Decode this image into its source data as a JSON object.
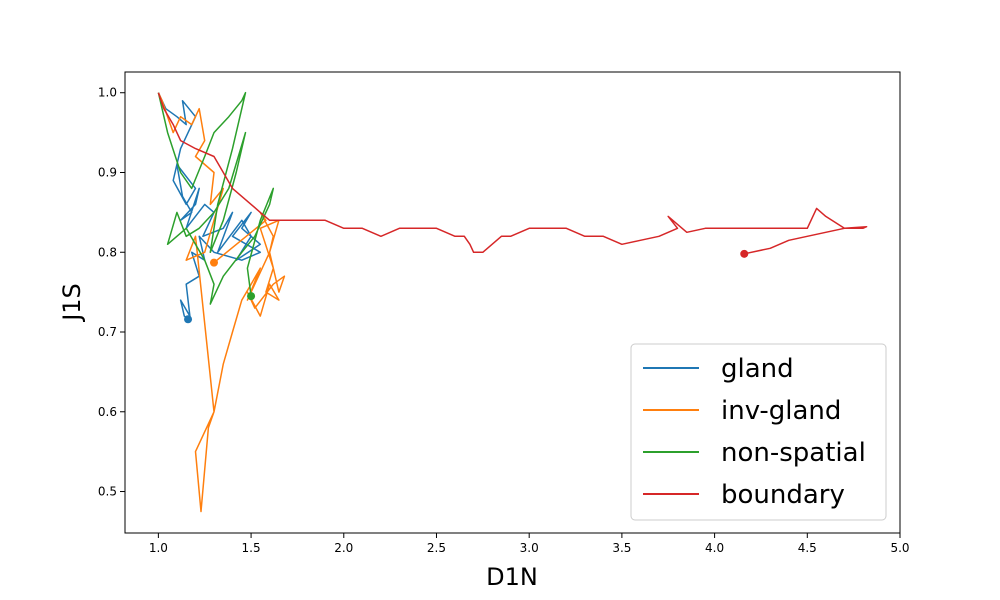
{
  "chart_data": {
    "type": "line",
    "title": "",
    "xlabel": "D1N",
    "ylabel": "J1S",
    "xlim": [
      0.82,
      5.0
    ],
    "ylim": [
      0.448,
      1.026
    ],
    "xticks": [
      1.0,
      1.5,
      2.0,
      2.5,
      3.0,
      3.5,
      4.0,
      4.5,
      5.0
    ],
    "yticks": [
      0.5,
      0.6,
      0.7,
      0.8,
      0.9,
      1.0
    ],
    "grid": false,
    "legend_position": "lower-right",
    "series": [
      {
        "name": "gland",
        "color": "#1f77b4",
        "x": [
          1.0,
          1.04,
          1.1,
          1.15,
          1.13,
          1.2,
          1.12,
          1.08,
          1.15,
          1.2,
          1.1,
          1.13,
          1.18,
          1.12,
          1.2,
          1.22,
          1.15,
          1.25,
          1.3,
          1.24,
          1.35,
          1.4,
          1.32,
          1.45,
          1.5,
          1.42,
          1.55,
          1.45,
          1.5,
          1.4,
          1.55,
          1.45,
          1.3,
          1.22,
          1.25,
          1.18,
          1.22,
          1.15,
          1.17,
          1.12,
          1.14,
          1.16
        ],
        "y": [
          1.0,
          0.98,
          0.97,
          0.96,
          0.99,
          0.97,
          0.93,
          0.89,
          0.86,
          0.88,
          0.91,
          0.87,
          0.85,
          0.84,
          0.86,
          0.88,
          0.83,
          0.86,
          0.85,
          0.82,
          0.83,
          0.85,
          0.8,
          0.84,
          0.82,
          0.79,
          0.81,
          0.83,
          0.85,
          0.82,
          0.8,
          0.79,
          0.8,
          0.82,
          0.79,
          0.8,
          0.77,
          0.76,
          0.72,
          0.74,
          0.72,
          0.716
        ]
      },
      {
        "name": "inv-gland",
        "color": "#ff7f0e",
        "x": [
          1.0,
          1.02,
          1.05,
          1.08,
          1.12,
          1.18,
          1.22,
          1.25,
          1.2,
          1.3,
          1.28,
          1.35,
          1.3,
          1.25,
          1.15,
          1.2,
          1.3,
          1.27,
          1.23,
          1.2,
          1.3,
          1.35,
          1.4,
          1.45,
          1.5,
          1.55,
          1.48,
          1.6,
          1.65,
          1.55,
          1.62,
          1.58,
          1.65,
          1.6,
          1.55,
          1.48,
          1.52,
          1.62,
          1.68,
          1.65,
          1.6,
          1.62,
          1.55,
          1.58,
          1.3
        ],
        "y": [
          1.0,
          0.99,
          0.97,
          0.95,
          0.97,
          0.96,
          0.98,
          0.94,
          0.92,
          0.9,
          0.86,
          0.88,
          0.84,
          0.8,
          0.79,
          0.82,
          0.6,
          0.58,
          0.475,
          0.55,
          0.6,
          0.66,
          0.7,
          0.74,
          0.76,
          0.78,
          0.74,
          0.8,
          0.84,
          0.83,
          0.78,
          0.75,
          0.74,
          0.76,
          0.72,
          0.75,
          0.73,
          0.76,
          0.77,
          0.75,
          0.8,
          0.82,
          0.85,
          0.84,
          0.787
        ]
      },
      {
        "name": "non-spatial",
        "color": "#2ca02c",
        "x": [
          1.0,
          1.05,
          1.12,
          1.18,
          1.25,
          1.3,
          1.38,
          1.45,
          1.47,
          1.4,
          1.32,
          1.28,
          1.35,
          1.42,
          1.47,
          1.38,
          1.3,
          1.22,
          1.15,
          1.1,
          1.05,
          1.15,
          1.25,
          1.3,
          1.28,
          1.35,
          1.45,
          1.52,
          1.6,
          1.62,
          1.55,
          1.48,
          1.5
        ],
        "y": [
          1.0,
          0.95,
          0.9,
          0.88,
          0.92,
          0.95,
          0.97,
          0.99,
          1.0,
          0.93,
          0.86,
          0.8,
          0.84,
          0.9,
          0.95,
          0.88,
          0.85,
          0.83,
          0.82,
          0.85,
          0.81,
          0.83,
          0.79,
          0.76,
          0.735,
          0.77,
          0.8,
          0.82,
          0.86,
          0.88,
          0.84,
          0.78,
          0.745
        ]
      },
      {
        "name": "boundary",
        "color": "#d62728",
        "x": [
          1.0,
          1.03,
          1.08,
          1.12,
          1.2,
          1.3,
          1.35,
          1.4,
          1.45,
          1.5,
          1.55,
          1.6,
          1.65,
          1.7,
          1.8,
          1.9,
          2.0,
          2.1,
          2.2,
          2.3,
          2.4,
          2.5,
          2.6,
          2.65,
          2.68,
          2.7,
          2.75,
          2.8,
          2.85,
          2.9,
          3.0,
          3.1,
          3.2,
          3.3,
          3.4,
          3.5,
          3.6,
          3.7,
          3.8,
          3.75,
          3.85,
          3.95,
          4.0,
          4.1,
          4.2,
          4.3,
          4.4,
          4.5,
          4.55,
          4.6,
          4.7,
          4.8,
          4.82,
          4.7,
          4.6,
          4.5,
          4.4,
          4.3,
          4.16
        ],
        "y": [
          1.0,
          0.98,
          0.96,
          0.94,
          0.93,
          0.92,
          0.9,
          0.88,
          0.87,
          0.86,
          0.85,
          0.84,
          0.84,
          0.84,
          0.84,
          0.84,
          0.83,
          0.83,
          0.82,
          0.83,
          0.83,
          0.83,
          0.82,
          0.82,
          0.81,
          0.8,
          0.8,
          0.81,
          0.82,
          0.82,
          0.83,
          0.83,
          0.83,
          0.82,
          0.82,
          0.81,
          0.815,
          0.82,
          0.83,
          0.845,
          0.825,
          0.83,
          0.83,
          0.83,
          0.83,
          0.83,
          0.83,
          0.83,
          0.855,
          0.845,
          0.83,
          0.83,
          0.832,
          0.83,
          0.825,
          0.82,
          0.815,
          0.805,
          0.798
        ]
      }
    ]
  }
}
